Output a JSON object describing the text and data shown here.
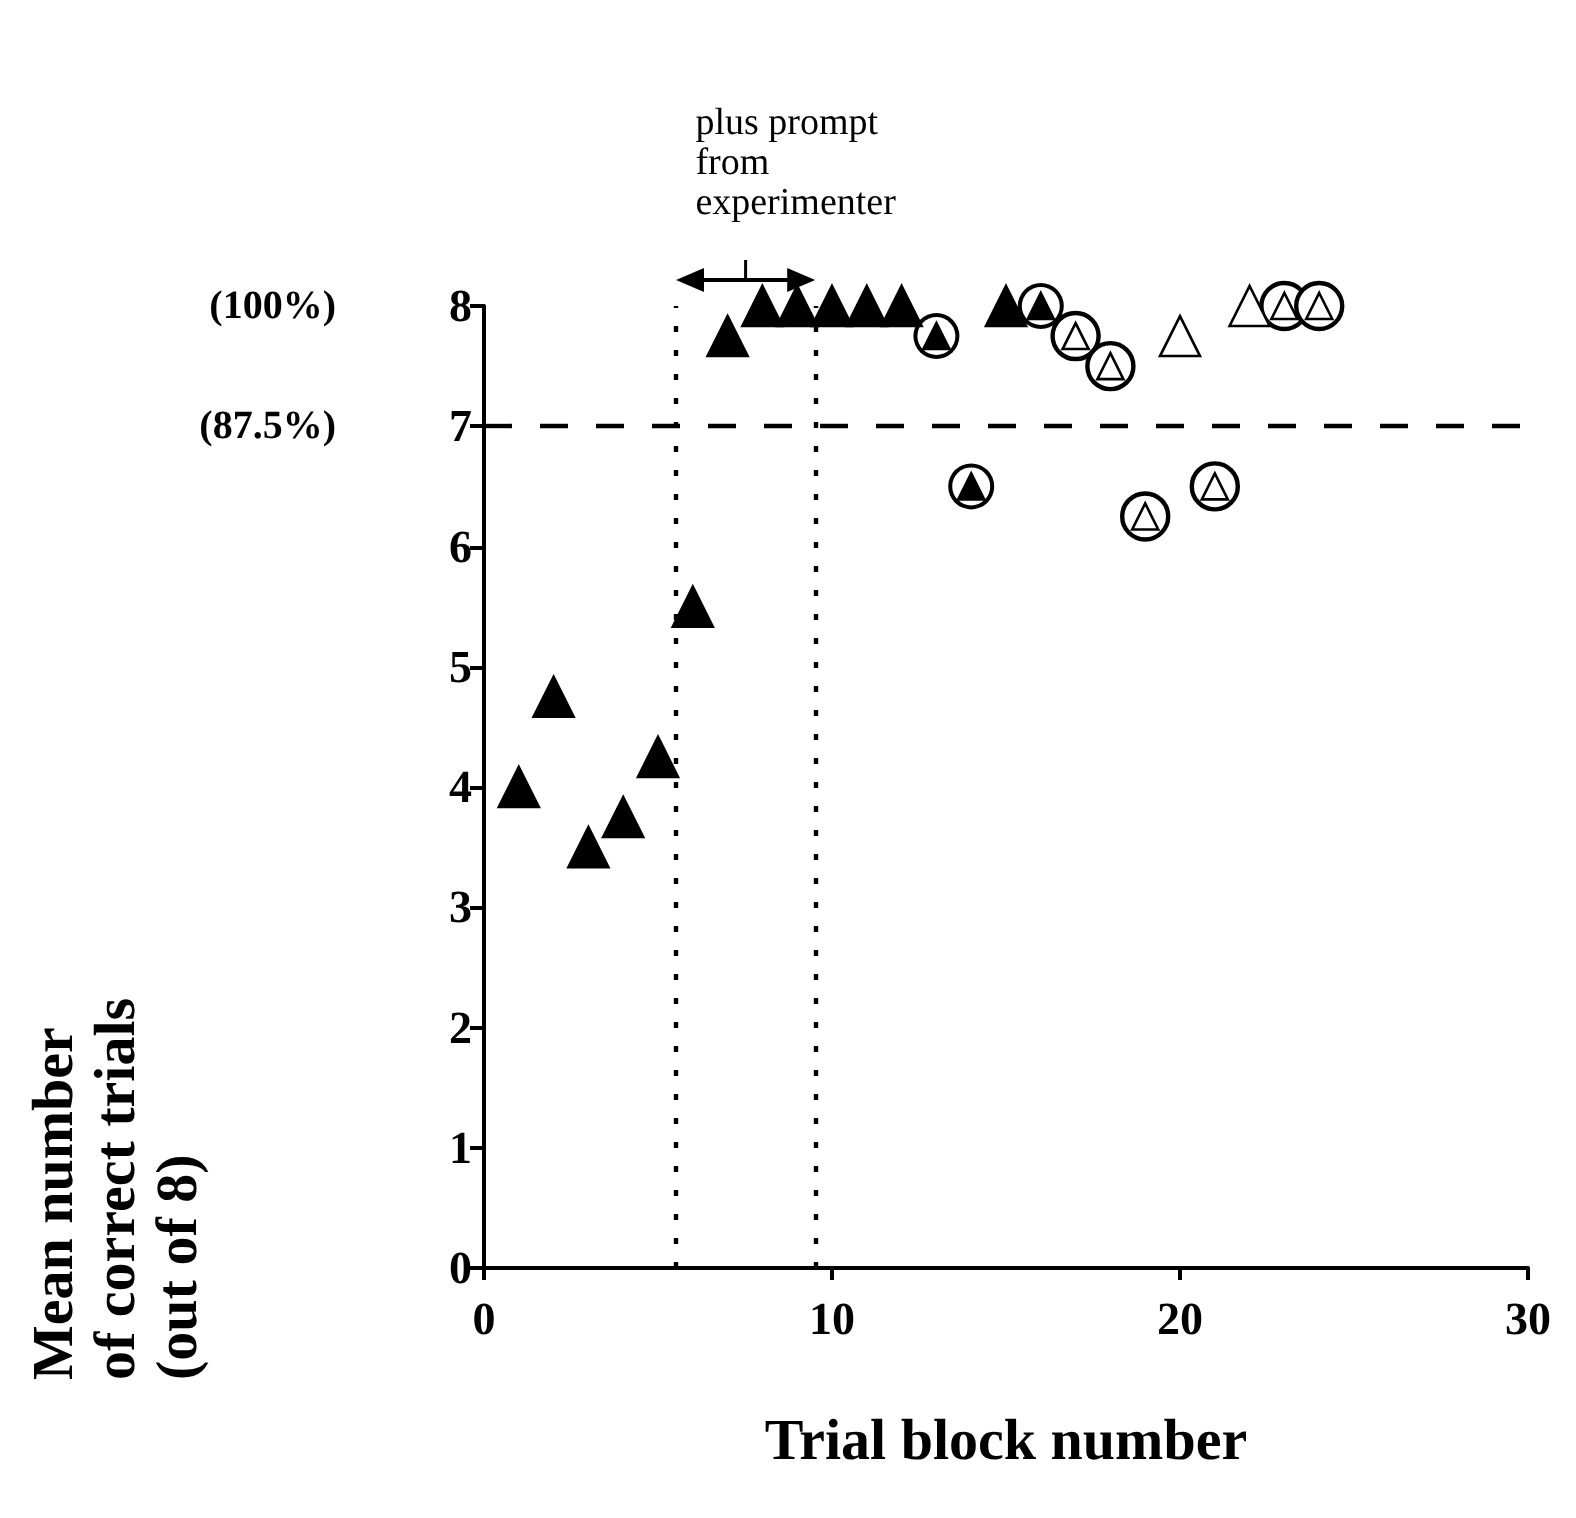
{
  "chart_data": {
    "type": "scatter",
    "xlabel": "Trial block number",
    "ylabel": "Mean number of correct trials (out of 8)",
    "annotations": [
      "plus prompt from experimenter",
      "(100%)",
      "(87.5%)"
    ],
    "xlim": [
      0,
      30
    ],
    "xticks": [
      0,
      10,
      20,
      30
    ],
    "ylim": [
      0,
      8
    ],
    "yticks": [
      0,
      1,
      2,
      3,
      4,
      5,
      6,
      7,
      8
    ],
    "grid": false,
    "ref_lines": [
      {
        "axis": "y",
        "value": 7,
        "color": "#000000",
        "line_style": "dashed"
      },
      {
        "axis": "x",
        "value": 5.5,
        "color": "#000000",
        "line_style": "dotted"
      },
      {
        "axis": "x",
        "value": 9.5,
        "color": "#000000",
        "line_style": "dotted"
      }
    ],
    "series": [
      {
        "color": "#000000",
        "marker": "triangle",
        "x": [
          1,
          2,
          3,
          4,
          5,
          6,
          7,
          8,
          9,
          10,
          11,
          12,
          15
        ],
        "values": [
          4.0,
          4.75,
          3.5,
          3.75,
          4.25,
          5.5,
          7.75,
          8,
          8,
          8,
          8,
          8,
          8
        ]
      },
      {
        "color": "#000000",
        "marker": "circle",
        "x": [
          13,
          14,
          16
        ],
        "values": [
          7.75,
          6.5,
          8
        ]
      },
      {
        "color": "#ffffff",
        "marker": "circle",
        "x": [
          17,
          18,
          19,
          21,
          23,
          24
        ],
        "values": [
          7.75,
          7.5,
          6.25,
          6.5,
          8,
          8
        ]
      },
      {
        "color": "#ffffff",
        "marker": "triangle",
        "x": [
          20,
          22
        ],
        "values": [
          7.75,
          8
        ]
      }
    ]
  }
}
